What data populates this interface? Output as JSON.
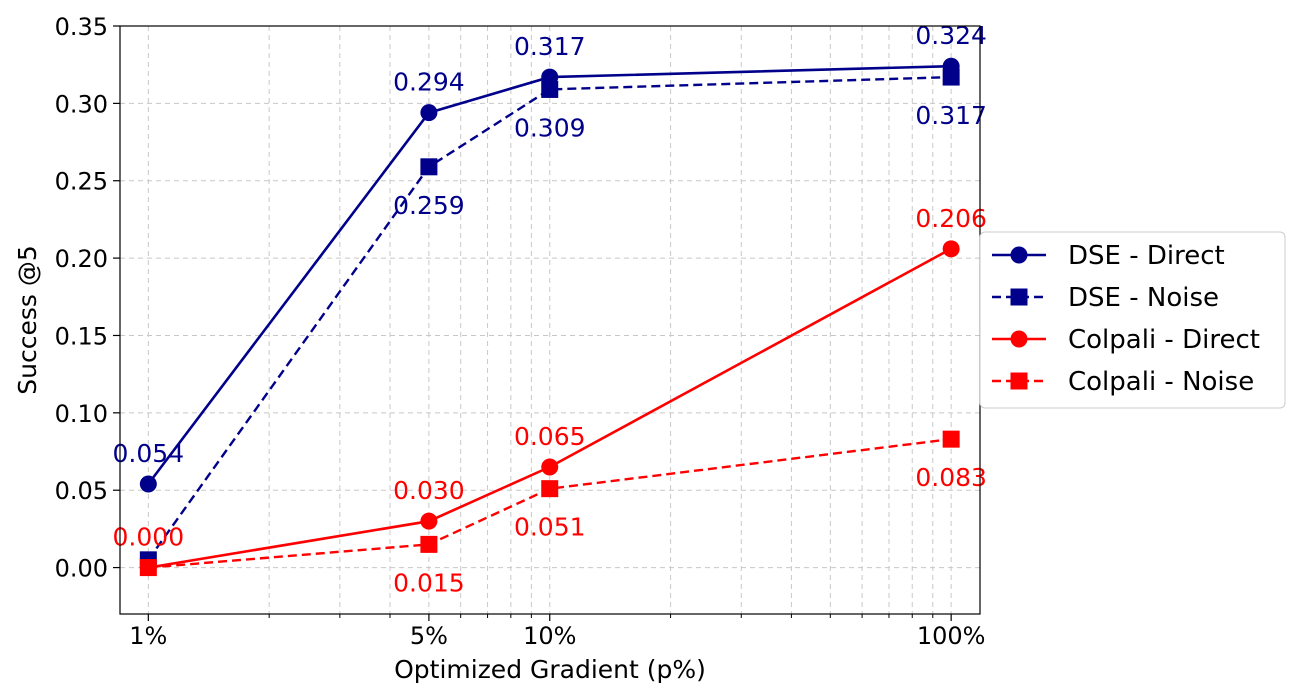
{
  "chart_data": {
    "type": "line",
    "xscale": "log",
    "x": [
      1,
      5,
      10,
      100
    ],
    "x_tick_labels": [
      "1%",
      "5%",
      "10%",
      "100%"
    ],
    "xlabel": "Optimized Gradient (p%)",
    "ylabel": "Success @5",
    "ylim": [
      -0.03,
      0.35
    ],
    "y_ticks": [
      0.0,
      0.05,
      0.1,
      0.15,
      0.2,
      0.25,
      0.3,
      0.35
    ],
    "y_tick_labels": [
      "0.00",
      "0.05",
      "0.10",
      "0.15",
      "0.20",
      "0.25",
      "0.30",
      "0.35"
    ],
    "grid": true,
    "legend_position": "center-right outside",
    "series": [
      {
        "name": "DSE - Direct",
        "color": "#00008b",
        "linestyle": "solid",
        "marker": "circle",
        "values": [
          0.054,
          0.294,
          0.317,
          0.324
        ],
        "labels": [
          "0.054",
          "0.294",
          "0.317",
          "0.324"
        ],
        "label_position": "above"
      },
      {
        "name": "DSE - Noise",
        "color": "#00008b",
        "linestyle": "dashed",
        "marker": "square",
        "values": [
          0.005,
          0.259,
          0.309,
          0.317
        ],
        "labels": [
          "",
          "0.259",
          "0.309",
          "0.317"
        ],
        "label_position": "below"
      },
      {
        "name": "Colpali - Direct",
        "color": "#ff0000",
        "linestyle": "solid",
        "marker": "circle",
        "values": [
          0.0,
          0.03,
          0.065,
          0.206
        ],
        "labels": [
          "0.000",
          "0.030",
          "0.065",
          "0.206"
        ],
        "label_position": "above"
      },
      {
        "name": "Colpali - Noise",
        "color": "#ff0000",
        "linestyle": "dashed",
        "marker": "square",
        "values": [
          0.0,
          0.015,
          0.051,
          0.083
        ],
        "labels": [
          "",
          "0.015",
          "0.051",
          "0.083"
        ],
        "label_position": "below"
      }
    ]
  }
}
